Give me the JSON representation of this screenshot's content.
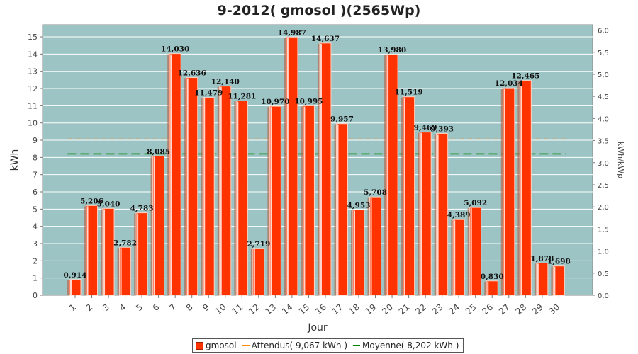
{
  "chart_data": {
    "type": "bar",
    "title": "9-2012( gmosol )(2565Wp)",
    "xlabel": "Jour",
    "ylabel": "kWh",
    "ylabel_right": "kWh/kWp",
    "ylim": [
      0,
      15.7
    ],
    "ylim_right": [
      0,
      6.121
    ],
    "yticks": [
      "0",
      "1",
      "2",
      "3",
      "4",
      "5",
      "6",
      "7",
      "8",
      "9",
      "10",
      "11",
      "12",
      "13",
      "14",
      "15"
    ],
    "yticks_right": [
      "0,0",
      "0,5",
      "1,0",
      "1,5",
      "2,0",
      "2,5",
      "3,0",
      "3,5",
      "4,0",
      "4,5",
      "5,0",
      "5,5",
      "6,0"
    ],
    "categories": [
      "1",
      "2",
      "3",
      "4",
      "5",
      "6",
      "7",
      "8",
      "9",
      "10",
      "11",
      "12",
      "13",
      "14",
      "15",
      "16",
      "17",
      "18",
      "19",
      "20",
      "21",
      "22",
      "23",
      "24",
      "25",
      "26",
      "27",
      "28",
      "29",
      "30"
    ],
    "series": [
      {
        "name": "gmosol",
        "values": [
          0.914,
          5.206,
          5.04,
          2.782,
          4.783,
          8.085,
          14.03,
          12.636,
          11.479,
          12.14,
          11.281,
          2.719,
          10.97,
          14.987,
          10.995,
          14.637,
          9.957,
          4.953,
          5.708,
          13.98,
          11.519,
          9.469,
          9.393,
          4.389,
          5.092,
          0.83,
          12.034,
          12.465,
          1.878,
          1.698
        ],
        "labels": [
          "0,914",
          "5,206",
          "5,040",
          "2,782",
          "4,783",
          "8,085",
          "14,030",
          "12,636",
          "11,479",
          "12,140",
          "11,281",
          "2,719",
          "10,970",
          "14,987",
          "10,995",
          "14,637",
          "9,957",
          "4,953",
          "5,708",
          "13,980",
          "11,519",
          "9,469",
          "9,393",
          "4,389",
          "5,092",
          "0,830",
          "12,034",
          "12,465",
          "1,878",
          "1,698"
        ],
        "color": "#ff3300"
      }
    ],
    "reference_lines": [
      {
        "name": "Attendus( 9,067 kWh )",
        "value": 9.067,
        "color": "#ff8800"
      },
      {
        "name": "Moyenne( 8,202 kWh )",
        "value": 8.202,
        "color": "#008800"
      }
    ],
    "plot_background": "#9cc4c4",
    "grid": true,
    "legend_position": "bottom"
  }
}
